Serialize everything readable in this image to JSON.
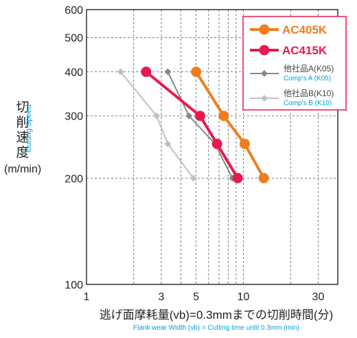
{
  "chart_data": {
    "type": "line",
    "x_scale": "log",
    "y_scale": "log",
    "xlim": [
      1,
      40
    ],
    "ylim": [
      100,
      600
    ],
    "x_ticks": [
      1,
      3,
      5,
      10,
      30
    ],
    "x_tick_labels": [
      "1",
      "3",
      "5",
      "10",
      "30"
    ],
    "y_ticks": [
      100,
      200,
      300,
      400,
      500,
      600
    ],
    "y_tick_labels": [
      "100",
      "200",
      "300",
      "400",
      "500",
      "600"
    ],
    "grid": true,
    "legend_position": "top-right",
    "ylabel_jp": "切削速度",
    "ylabel_en": "Cutting Speed",
    "yunit": "(m/min)",
    "xlabel_jp": "逃げ面摩耗量(vb)=0.3mmまでの切削時間(分)",
    "xlabel_en": "Flank wear Width (vb) = Cutting time until 0.3mm (min)",
    "series": [
      {
        "name": "AC405K",
        "name_en": "",
        "color": "#f07d1e",
        "style": "big",
        "points": [
          [
            5,
            400
          ],
          [
            7.5,
            300
          ],
          [
            10.2,
            250
          ],
          [
            13.5,
            200
          ]
        ]
      },
      {
        "name": "AC415K",
        "name_en": "",
        "color": "#e8194e",
        "style": "big",
        "points": [
          [
            2.4,
            400
          ],
          [
            5.3,
            300
          ],
          [
            6.8,
            250
          ],
          [
            9.2,
            200
          ]
        ]
      },
      {
        "name": "他社品A(K05)",
        "name_en": "Comp's A (K05)",
        "color": "#888888",
        "style": "small",
        "points": [
          [
            3.3,
            400
          ],
          [
            4.5,
            300
          ],
          [
            6.6,
            250
          ],
          [
            8.5,
            200
          ]
        ]
      },
      {
        "name": "他社品B(K10)",
        "name_en": "Comp's B (K10)",
        "color": "#c0c0c0",
        "style": "small",
        "points": [
          [
            1.65,
            400
          ],
          [
            2.8,
            300
          ],
          [
            3.3,
            250
          ],
          [
            4.8,
            200
          ]
        ]
      }
    ]
  }
}
